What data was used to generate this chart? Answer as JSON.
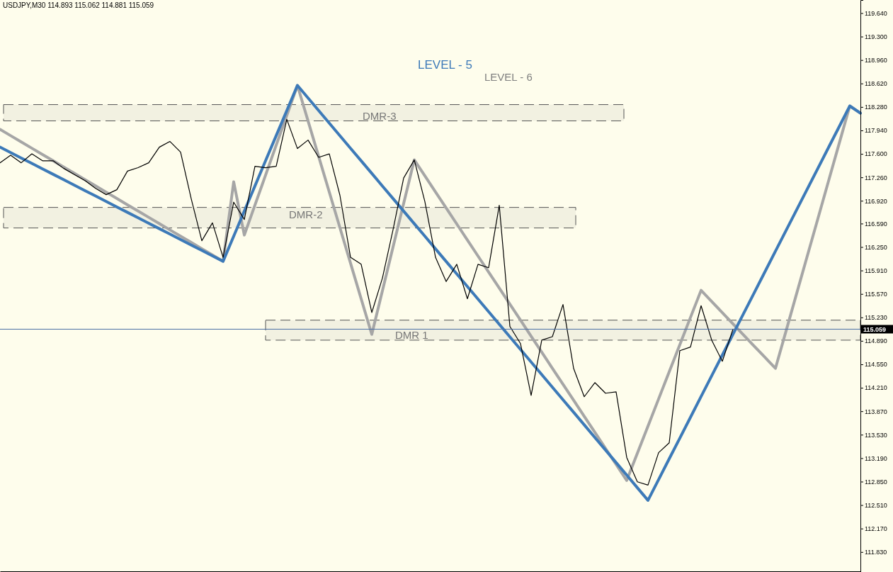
{
  "chart_data": {
    "type": "line",
    "title": "USDJPY,M30  114.893 115.062 114.881 115.059",
    "annotations": [
      "LEVEL - 5",
      "LEVEL - 6"
    ],
    "categories": [
      null,
      null,
      null,
      null,
      null,
      null,
      null,
      null,
      null,
      null,
      null,
      null,
      null,
      null,
      null,
      null,
      null,
      null,
      null,
      null,
      null,
      null,
      null,
      null,
      null,
      null,
      null,
      null,
      null,
      null,
      null,
      null,
      null,
      null,
      null,
      null,
      null,
      null,
      null,
      null,
      null,
      null,
      null,
      null,
      null,
      null,
      null,
      null,
      null,
      null,
      null,
      null,
      null,
      null,
      null,
      null,
      null,
      null,
      null,
      null,
      null,
      null,
      null,
      null,
      null,
      null,
      null,
      null,
      null,
      null,
      null,
      null,
      null,
      null,
      null,
      null,
      null,
      null,
      null,
      null,
      null,
      null
    ],
    "ylim": [
      111.54,
      119.83
    ],
    "tick_labels": "y",
    "yticks": [
      {
        "value": 111.83,
        "label": "111.830"
      },
      {
        "value": 112.17,
        "label": "112.170"
      },
      {
        "value": 112.51,
        "label": "112.510"
      },
      {
        "value": 112.85,
        "label": "112.850"
      },
      {
        "value": 113.19,
        "label": "113.190"
      },
      {
        "value": 113.53,
        "label": "113.530"
      },
      {
        "value": 113.87,
        "label": "113.870"
      },
      {
        "value": 114.21,
        "label": "114.210"
      },
      {
        "value": 114.55,
        "label": "114.550"
      },
      {
        "value": 114.89,
        "label": "114.890"
      },
      {
        "value": 115.23,
        "label": "115.230"
      },
      {
        "value": 115.57,
        "label": "115.570"
      },
      {
        "value": 115.91,
        "label": "115.910"
      },
      {
        "value": 116.25,
        "label": "116.250"
      },
      {
        "value": 116.59,
        "label": "116.590"
      },
      {
        "value": 116.92,
        "label": "116.920"
      },
      {
        "value": 117.26,
        "label": "117.260"
      },
      {
        "value": 117.6,
        "label": "117.600"
      },
      {
        "value": 117.94,
        "label": "117.940"
      },
      {
        "value": 118.28,
        "label": "118.280"
      },
      {
        "value": 118.62,
        "label": "118.620"
      },
      {
        "value": 118.96,
        "label": "118.960"
      },
      {
        "value": 119.3,
        "label": "119.300"
      },
      {
        "value": 119.64,
        "label": "119.640"
      }
    ],
    "ref_lines": [
      {
        "axis": "y",
        "value": 115.059,
        "label": "115.059",
        "color": "#4a6fa5"
      }
    ],
    "bands": [
      {
        "axis": "y",
        "from": 118.078,
        "to": 118.314,
        "label": "DMR-3",
        "color": "#555555"
      },
      {
        "axis": "y",
        "from": 116.526,
        "to": 116.824,
        "label": "DMR-2",
        "color": "#555555"
      },
      {
        "axis": "y",
        "from": 114.9,
        "to": 115.19,
        "label": "DMR 1",
        "color": "#555555"
      }
    ],
    "series": [
      {
        "color": "#a6a6a6",
        "values": [
          117.955,
          117.864,
          117.773,
          117.682,
          117.591,
          117.5,
          117.409,
          117.318,
          117.227,
          117.136,
          117.045,
          116.953,
          116.862,
          116.771,
          116.68,
          116.589,
          116.498,
          116.407,
          116.316,
          116.225,
          116.134,
          116.043,
          117.194,
          116.423,
          116.857,
          117.291,
          117.725,
          118.158,
          118.592,
          118.077,
          117.561,
          117.046,
          116.53,
          116.015,
          115.499,
          114.984,
          115.616,
          116.249,
          116.881,
          117.513,
          117.281,
          117.048,
          116.816,
          116.584,
          116.351,
          116.119,
          115.887,
          115.655,
          115.422,
          115.19,
          114.958,
          114.726,
          114.493,
          114.261,
          114.029,
          113.796,
          113.564,
          113.332,
          113.099,
          112.867,
          113.261,
          113.654,
          114.048,
          114.441,
          114.835,
          115.229,
          115.622,
          115.46,
          115.299,
          115.137,
          114.976,
          114.814,
          114.653,
          114.491,
          115.034,
          115.578,
          116.121,
          116.664,
          117.208,
          117.751,
          118.294,
          118.191
        ]
      },
      {
        "color": "#3d7ab8",
        "values": [
          117.698,
          117.619,
          117.54,
          117.462,
          117.383,
          117.304,
          117.225,
          117.146,
          117.067,
          116.989,
          116.91,
          116.831,
          116.752,
          116.673,
          116.595,
          116.516,
          116.437,
          116.358,
          116.279,
          116.201,
          116.122,
          116.043,
          116.407,
          116.771,
          117.135,
          117.5,
          117.864,
          118.228,
          118.592,
          118.41,
          118.228,
          118.045,
          117.863,
          117.681,
          117.499,
          117.317,
          117.134,
          116.952,
          116.77,
          116.588,
          116.406,
          116.223,
          116.041,
          115.859,
          115.677,
          115.495,
          115.312,
          115.13,
          114.948,
          114.766,
          114.584,
          114.401,
          114.219,
          114.037,
          113.855,
          113.673,
          113.49,
          113.308,
          113.126,
          112.944,
          112.761,
          112.579,
          112.88,
          113.181,
          113.481,
          113.782,
          114.083,
          114.384,
          114.685,
          114.985,
          115.286,
          115.587,
          115.888,
          116.189,
          116.49,
          116.79,
          117.091,
          117.392,
          117.693,
          117.994,
          118.294,
          118.191
        ]
      },
      {
        "color": "#000000",
        "values": [
          117.471,
          117.58,
          117.471,
          117.6,
          117.5,
          117.5,
          117.389,
          117.3,
          117.214,
          117.1,
          117.009,
          117.081,
          117.35,
          117.4,
          117.471,
          117.697,
          117.78,
          117.625,
          116.95,
          116.341,
          116.6,
          116.1,
          116.9,
          116.649,
          117.42,
          117.4,
          117.42,
          118.1,
          117.677,
          117.8,
          117.55,
          117.6,
          117.0,
          116.1,
          116.0,
          115.3,
          115.8,
          116.5,
          117.25,
          117.512,
          116.906,
          116.1,
          115.75,
          116.0,
          115.5,
          116.0,
          115.95,
          116.855,
          115.1,
          114.85,
          114.1,
          114.9,
          114.95,
          115.416,
          114.491,
          114.08,
          114.285,
          114.131,
          114.15,
          113.2,
          112.847,
          112.8,
          113.27,
          113.412,
          114.748,
          114.8,
          115.4,
          114.9,
          114.594,
          115.059,
          null,
          null,
          null,
          null,
          null,
          null,
          null,
          null,
          null,
          null,
          null,
          null
        ]
      }
    ]
  }
}
